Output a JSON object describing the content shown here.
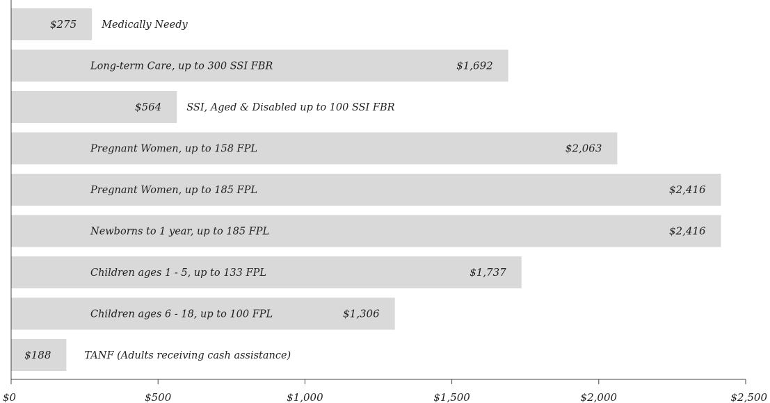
{
  "chart_data": {
    "type": "bar",
    "orientation": "horizontal",
    "categories": [
      "Medically Needy",
      "Long-term Care, up to 300 SSI FBR",
      "SSI, Aged & Disabled up to 100 SSI FBR",
      "Pregnant Women, up to 158 FPL",
      "Pregnant Women, up to 185 FPL",
      "Newborns to 1 year, up to 185 FPL",
      "Children ages 1 - 5, up to 133 FPL",
      "Children ages 6 - 18, up to 100 FPL",
      "TANF (Adults receiving cash assistance)"
    ],
    "values": [
      275,
      1692,
      564,
      2063,
      2416,
      2416,
      1737,
      1306,
      188
    ],
    "value_labels": [
      "$275",
      "$1,692",
      "$564",
      "$2,063",
      "$2,416",
      "$2,416",
      "$1,737",
      "$1,306",
      "$188"
    ],
    "xlim": [
      0,
      2500
    ],
    "x_ticks": [
      0,
      500,
      1000,
      1500,
      2000,
      2500
    ],
    "x_tick_labels": [
      "$0",
      "$500",
      "$1,000",
      "$1,500",
      "$2,000",
      "$2,500"
    ],
    "bar_color": "#d9d9d9",
    "text_color": "#222222",
    "axis_color": "#444444",
    "grid": false,
    "legend": "none"
  }
}
